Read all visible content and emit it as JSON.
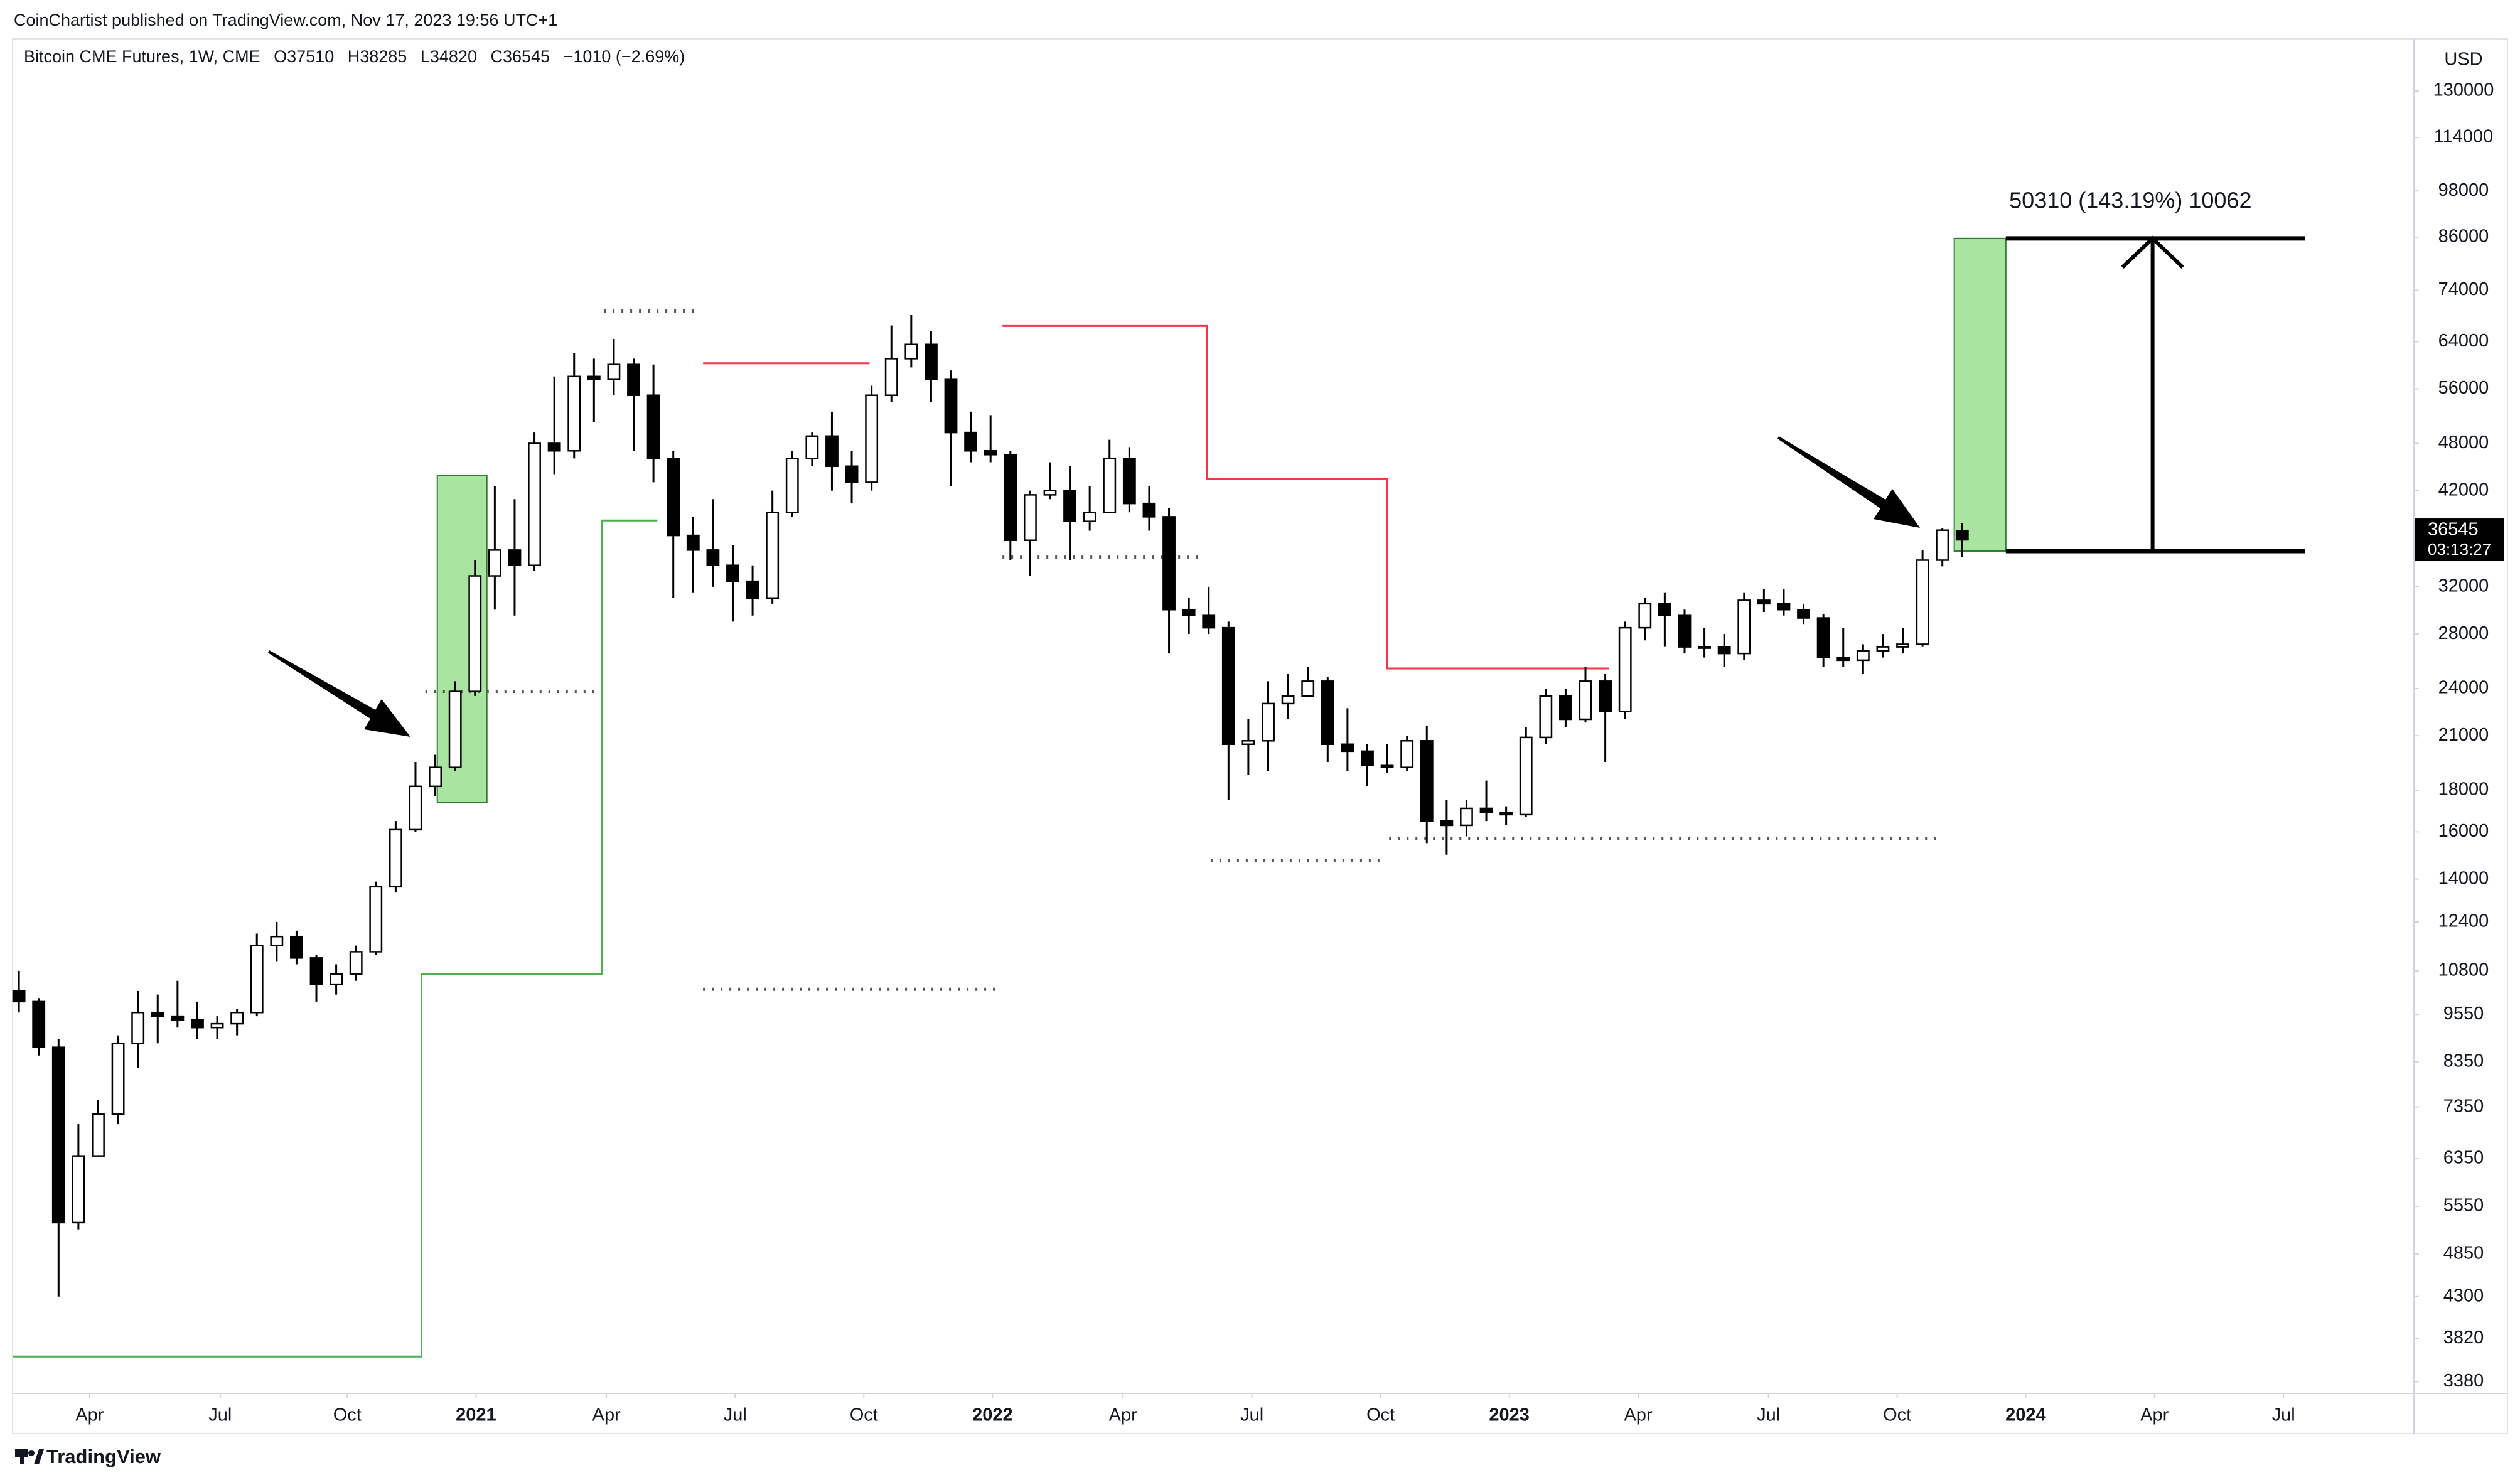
{
  "header": {
    "published": "CoinChartist published on TradingView.com, Nov 17, 2023 19:56 UTC+1"
  },
  "footer": {
    "brand": "TradingView"
  },
  "chart_data": {
    "type": "candlestick",
    "title": "Bitcoin CME Futures, 1W, CME",
    "ohlc_prefixes": [
      "O",
      "H",
      "L",
      "C"
    ],
    "change": "−1010 (−2.69%)",
    "currency": "USD",
    "countdown": "03:13:27",
    "log_scale": true,
    "up_color": "#ffffff",
    "down_color": "#000000",
    "open": [
      10200,
      9900,
      8700,
      5300,
      6400,
      7200,
      8800,
      9600,
      9500,
      9400,
      9200,
      9300,
      9600,
      11600,
      11900,
      11200,
      10400,
      10700,
      11400,
      13700,
      16100,
      18200,
      19200,
      23800,
      33000,
      35500,
      34000,
      48000,
      47000,
      58000,
      57500,
      60000,
      55000,
      46000,
      37000,
      35500,
      34000,
      32500,
      31000,
      39500,
      46000,
      49000,
      45000,
      43000,
      55000,
      61000,
      63500,
      57500,
      49500,
      47000,
      46500,
      36500,
      41500,
      42000,
      38500,
      39500,
      46000,
      40500,
      39000,
      30000,
      29500,
      28500,
      20500,
      20700,
      23000,
      23500,
      24500,
      20500,
      20100,
      19300,
      19200,
      20700,
      16500,
      16300,
      17100,
      16900,
      16800,
      20900,
      23500,
      22000,
      24500,
      22500,
      28500,
      30500,
      29500,
      27000,
      27000,
      26500,
      30800,
      30500,
      30000,
      29300,
      26200,
      26000,
      26700,
      27000,
      27200,
      34500,
      37510
    ],
    "high": [
      10800,
      10000,
      8900,
      7000,
      7500,
      9000,
      10200,
      10100,
      10500,
      9900,
      9500,
      9700,
      12000,
      12400,
      12100,
      11300,
      11000,
      11600,
      13900,
      16500,
      19500,
      19900,
      24500,
      34500,
      42500,
      41000,
      49500,
      58000,
      62000,
      61000,
      64500,
      61000,
      60000,
      47000,
      39000,
      41000,
      36000,
      34000,
      42000,
      47000,
      49500,
      52500,
      47000,
      56500,
      67000,
      69000,
      66000,
      59000,
      52500,
      52000,
      47000,
      42000,
      45500,
      45000,
      42500,
      48500,
      47500,
      42500,
      40000,
      31000,
      32000,
      29000,
      22000,
      24500,
      25000,
      25500,
      24800,
      22700,
      20500,
      20500,
      21000,
      21600,
      17500,
      17500,
      18500,
      17200,
      21500,
      24000,
      24000,
      25500,
      25000,
      29000,
      31000,
      31500,
      30000,
      28500,
      28000,
      31500,
      31800,
      31800,
      30500,
      29600,
      28500,
      27200,
      28000,
      28500,
      35500,
      37800,
      38285
    ],
    "low": [
      9600,
      8500,
      4300,
      5200,
      6600,
      7000,
      8200,
      8800,
      9200,
      8900,
      8900,
      9000,
      9500,
      11100,
      11000,
      9900,
      10100,
      10500,
      11300,
      13500,
      16000,
      17700,
      19000,
      23500,
      30000,
      29500,
      33500,
      44000,
      46000,
      51000,
      55000,
      47000,
      43000,
      31000,
      31500,
      32000,
      29000,
      29500,
      30500,
      39000,
      45000,
      42000,
      40500,
      42000,
      54000,
      59500,
      54000,
      42500,
      45500,
      45500,
      34500,
      33000,
      41000,
      34500,
      37500,
      40000,
      39500,
      37500,
      26500,
      28000,
      28000,
      17500,
      18800,
      19000,
      22000,
      23500,
      19500,
      19000,
      18200,
      18900,
      19000,
      15500,
      15000,
      15800,
      16500,
      16300,
      16700,
      20500,
      21500,
      21800,
      19500,
      22000,
      27500,
      27000,
      26500,
      26200,
      25500,
      26000,
      29800,
      29500,
      28800,
      25500,
      25500,
      25000,
      26200,
      26500,
      27000,
      33900,
      34820
    ],
    "close": [
      9900,
      8700,
      5300,
      6400,
      7200,
      8800,
      9600,
      9500,
      9400,
      9200,
      9300,
      9600,
      11600,
      11900,
      11200,
      10400,
      10700,
      11400,
      13700,
      16100,
      18200,
      19200,
      23800,
      33000,
      35500,
      34000,
      48000,
      47000,
      58000,
      57500,
      60000,
      55000,
      46000,
      37000,
      35500,
      34000,
      32500,
      31000,
      39500,
      46000,
      49000,
      45000,
      43000,
      55000,
      61000,
      63500,
      57500,
      49500,
      47000,
      46500,
      36500,
      41500,
      42000,
      38500,
      39500,
      46000,
      40500,
      39000,
      30000,
      29500,
      28500,
      20500,
      20700,
      23000,
      23500,
      24500,
      20500,
      20100,
      19300,
      19200,
      20700,
      16500,
      16300,
      17100,
      16900,
      16800,
      20900,
      23500,
      22000,
      24500,
      22500,
      28500,
      30500,
      29500,
      27000,
      27000,
      26500,
      30800,
      30500,
      30000,
      29300,
      26200,
      26000,
      26700,
      27000,
      27200,
      34500,
      37555,
      36545
    ],
    "xlim": [
      -0.32,
      120.78
    ],
    "ylim": [
      3270,
      148000
    ],
    "xticks": [
      {
        "value": 3.57,
        "label": "Apr"
      },
      {
        "value": 10.15,
        "label": "Jul"
      },
      {
        "value": 16.56,
        "label": "Oct"
      },
      {
        "value": 23.05,
        "label": "2021"
      },
      {
        "value": 29.63,
        "label": "Apr"
      },
      {
        "value": 36.12,
        "label": "Jul"
      },
      {
        "value": 42.61,
        "label": "Oct"
      },
      {
        "value": 49.1,
        "label": "2022"
      },
      {
        "value": 55.68,
        "label": "Apr"
      },
      {
        "value": 62.18,
        "label": "Jul"
      },
      {
        "value": 68.67,
        "label": "Oct"
      },
      {
        "value": 75.16,
        "label": "2023"
      },
      {
        "value": 81.66,
        "label": "Apr"
      },
      {
        "value": 88.23,
        "label": "Jul"
      },
      {
        "value": 94.72,
        "label": "Oct"
      },
      {
        "value": 101.2,
        "label": "2024"
      },
      {
        "value": 107.7,
        "label": "Apr"
      },
      {
        "value": 114.2,
        "label": "Jul"
      }
    ],
    "yticks": [
      130000,
      114000,
      98000,
      86000,
      74000,
      64000,
      56000,
      48000,
      42000,
      32000,
      28000,
      24000,
      21000,
      18000,
      16000,
      14000,
      12400,
      10800,
      9550,
      8350,
      7350,
      6350,
      5550,
      4850,
      4300,
      3820,
      3380
    ],
    "boxes": [
      {
        "color": "#a9e5a1",
        "x": [
          21.1,
          23.6
        ],
        "y": [
          17400,
          43800
        ]
      },
      {
        "color": "#a9e5a1",
        "x": [
          97.6,
          100.2
        ],
        "y": [
          35400,
          85700
        ]
      }
    ],
    "measure": {
      "label": "50310 (143.19%) 10062",
      "x": [
        100.2,
        115.3
      ],
      "arrow_x": 107.6,
      "from": 35400,
      "to": 85700
    },
    "support_line": {
      "color": "#4caf50",
      "x": [
        -0.3,
        20.3,
        20.3,
        29.4,
        29.4,
        32.2
      ],
      "values": [
        3630,
        3630,
        10700,
        10700,
        38600,
        38600
      ]
    },
    "resistance_line": {
      "color": "#f23645",
      "x": [
        34.5,
        42.9,
        null,
        49.6,
        59.9,
        59.9,
        69.0,
        69.0,
        80.2
      ],
      "values": [
        60200,
        60200,
        null,
        66900,
        66900,
        43400,
        43400,
        25400,
        25400
      ]
    },
    "dotted_levels": [
      {
        "value": 69800,
        "x": [
          29.5,
          34.2
        ]
      },
      {
        "value": 23800,
        "x": [
          20.5,
          29.1
        ]
      },
      {
        "value": 10250,
        "x": [
          34.5,
          49.4
        ]
      },
      {
        "value": 34800,
        "x": [
          49.6,
          59.7
        ]
      },
      {
        "value": 14750,
        "x": [
          60.1,
          68.7
        ]
      },
      {
        "value": 15700,
        "x": [
          69.1,
          96.8
        ]
      }
    ]
  }
}
